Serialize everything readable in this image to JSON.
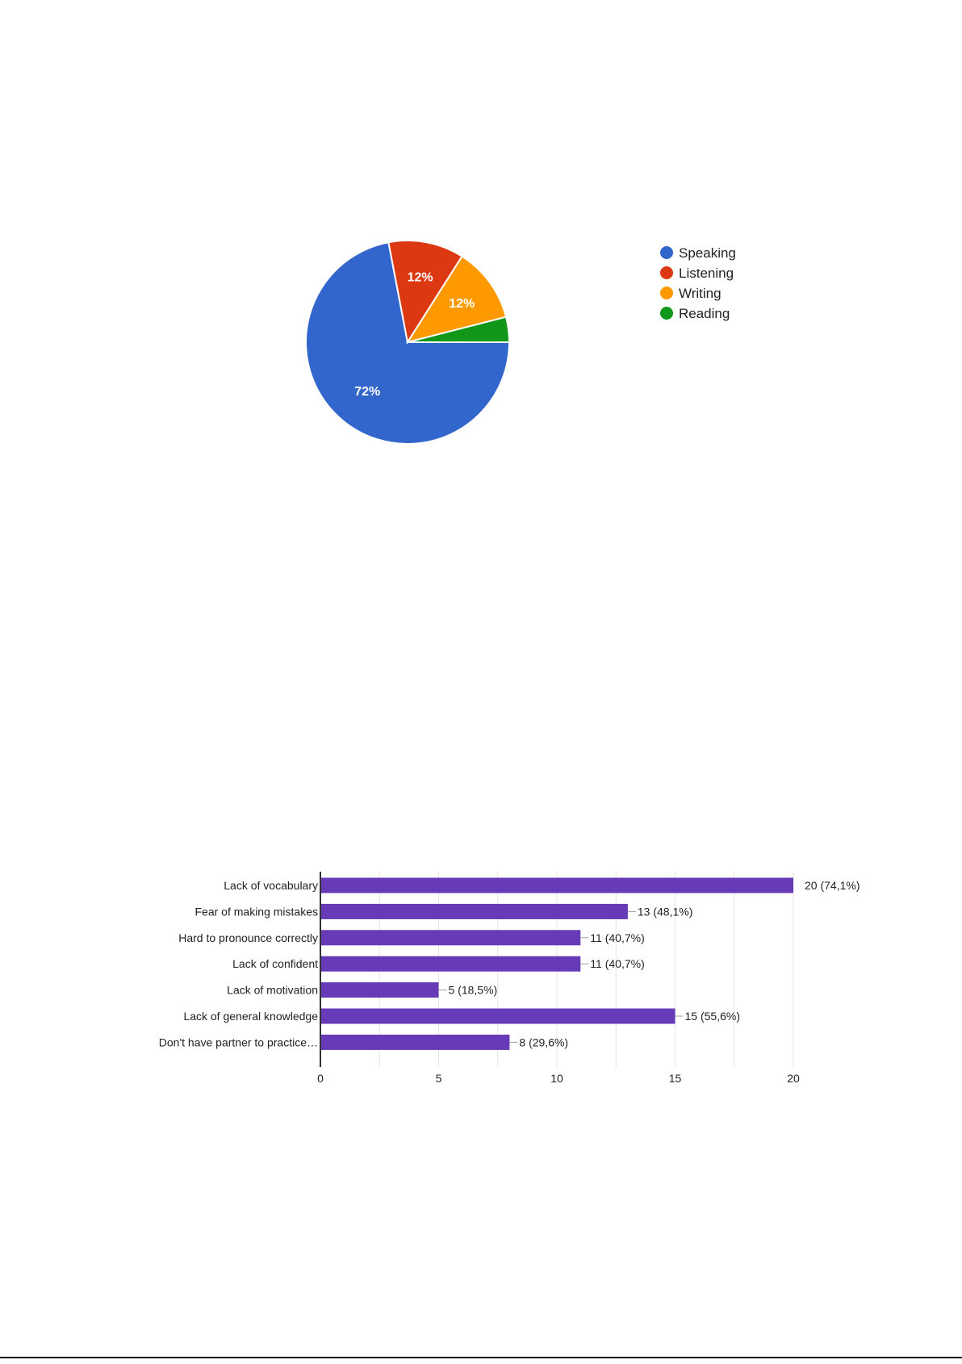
{
  "chart_data": [
    {
      "type": "pie",
      "title": "",
      "labels": [
        "Speaking",
        "Listening",
        "Writing",
        "Reading"
      ],
      "values": [
        72,
        12,
        12,
        4
      ],
      "slice_labels": [
        "72%",
        "12%",
        "12%",
        ""
      ],
      "colors": [
        "#3366cc",
        "#dc3912",
        "#ff9900",
        "#109618"
      ],
      "legend_position": "right"
    },
    {
      "type": "bar",
      "orientation": "horizontal",
      "title": "",
      "xlabel": "",
      "ylabel": "",
      "categories": [
        "Lack of vocabulary",
        "Fear of making mistakes",
        "Hard to pronounce correctly",
        "Lack of confident",
        "Lack of motivation",
        "Lack of general knowledge",
        "Don't have partner to practice…"
      ],
      "values": [
        20,
        13,
        11,
        11,
        5,
        15,
        8
      ],
      "data_labels": [
        "20 (74,1%)",
        "13 (48,1%)",
        "11 (40,7%)",
        "11 (40,7%)",
        "5 (18,5%)",
        "15 (55,6%)",
        "8 (29,6%)"
      ],
      "xlim": [
        0,
        20
      ],
      "xticks": [
        "0",
        "5",
        "10",
        "15",
        "20"
      ],
      "bar_color": "#673ab7",
      "grid": true
    }
  ]
}
